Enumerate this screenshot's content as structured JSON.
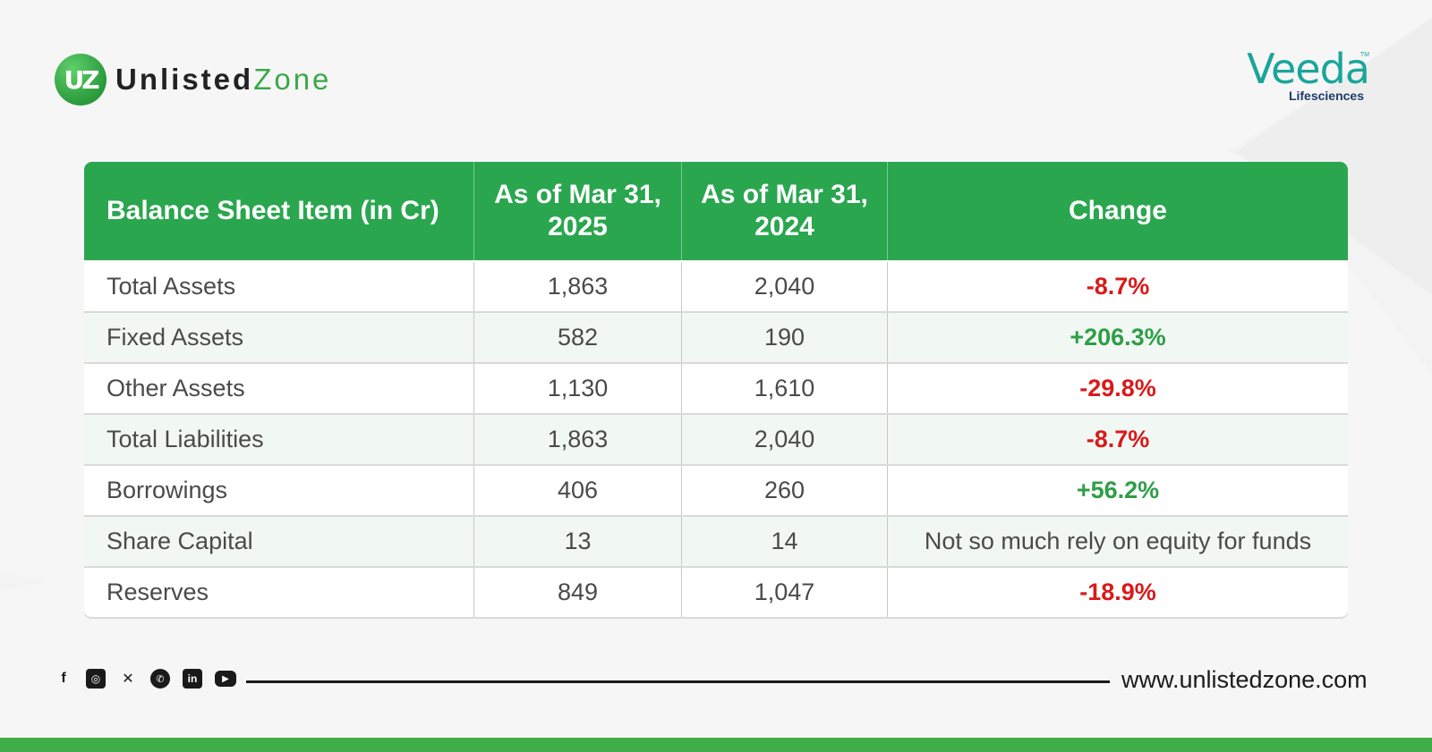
{
  "brand": {
    "mark": "UZ",
    "name_part1": "Unlisted",
    "name_part2": "Zone"
  },
  "company": {
    "name": "Veeda",
    "tm": "TM",
    "subtitle": "Lifesciences"
  },
  "table": {
    "headers": [
      "Balance Sheet Item (in Cr)",
      "As of Mar 31, 2025",
      "As of Mar 31, 2024",
      "Change"
    ],
    "rows": [
      {
        "item": "Total Assets",
        "y2025": "1,863",
        "y2024": "2,040",
        "change": "-8.7%",
        "trend": "negative"
      },
      {
        "item": "Fixed Assets",
        "y2025": "582",
        "y2024": "190",
        "change": "+206.3%",
        "trend": "positive"
      },
      {
        "item": "Other Assets",
        "y2025": "1,130",
        "y2024": "1,610",
        "change": "-29.8%",
        "trend": "negative"
      },
      {
        "item": "Total Liabilities",
        "y2025": "1,863",
        "y2024": "2,040",
        "change": "-8.7%",
        "trend": "negative"
      },
      {
        "item": "Borrowings",
        "y2025": "406",
        "y2024": "260",
        "change": "+56.2%",
        "trend": "positive"
      },
      {
        "item": "Share Capital",
        "y2025": "13",
        "y2024": "14",
        "change": "Not so much rely on equity for funds",
        "trend": "neutral"
      },
      {
        "item": "Reserves",
        "y2025": "849",
        "y2024": "1,047",
        "change": "-18.9%",
        "trend": "negative"
      }
    ]
  },
  "colors": {
    "header_bg": "#2aa64f",
    "negative": "#d81a1a",
    "positive": "#2f9e47",
    "bar": "#3fae49"
  },
  "social_icons": [
    "facebook-icon",
    "instagram-icon",
    "x-icon",
    "whatsapp-icon",
    "linkedin-icon",
    "youtube-icon"
  ],
  "footer": {
    "website": "www.unlistedzone.com"
  }
}
